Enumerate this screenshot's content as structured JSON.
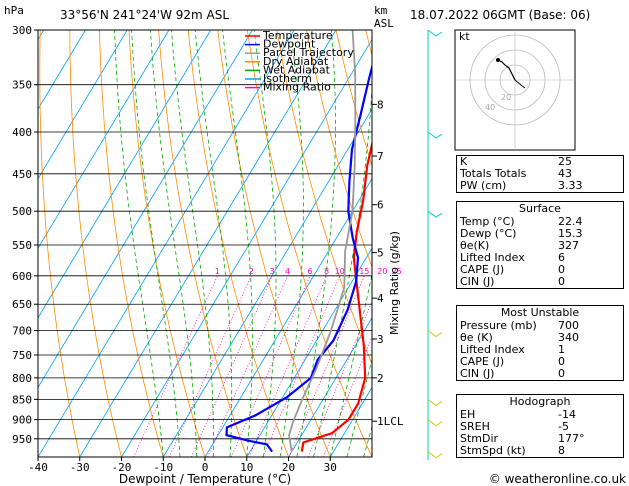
{
  "header": {
    "hpa_label": "hPa",
    "location": "33°56'N 241°24'W 92m ASL",
    "km_label": "km",
    "asl_label": "ASL",
    "datetime": "18.07.2022 06GMT (Base: 06)"
  },
  "legend": [
    {
      "label": "Temperature",
      "color": "#ff0000"
    },
    {
      "label": "Dewpoint",
      "color": "#0000ff"
    },
    {
      "label": "Parcel Trajectory",
      "color": "#999999"
    },
    {
      "label": "Dry Adiabat",
      "color": "#ff8c00"
    },
    {
      "label": "Wet Adiabat",
      "color": "#00aa00"
    },
    {
      "label": "Isotherm",
      "color": "#00a0ff"
    },
    {
      "label": "Mixing Ratio",
      "color": "#ff00c8"
    }
  ],
  "chart_data": {
    "type": "line",
    "xlabel": "Dewpoint / Temperature (°C)",
    "ylabel": "",
    "xlim": [
      -40,
      40
    ],
    "ylim": [
      300,
      1000
    ],
    "x_ticks": [
      "-40",
      "-30",
      "-20",
      "-10",
      "0",
      "10",
      "20",
      "30"
    ],
    "pressure_ticks": [
      "300",
      "350",
      "400",
      "450",
      "500",
      "550",
      "600",
      "650",
      "700",
      "750",
      "800",
      "850",
      "900",
      "950"
    ],
    "km_ticks": [
      {
        "label": "8",
        "p": 370
      },
      {
        "label": "7",
        "p": 428
      },
      {
        "label": "6",
        "p": 491
      },
      {
        "label": "5",
        "p": 562
      },
      {
        "label": "4",
        "p": 639
      },
      {
        "label": "3",
        "p": 717
      },
      {
        "label": "2",
        "p": 800
      },
      {
        "label": "1LCL",
        "p": 904
      }
    ],
    "mixing_ratio_axis_label": "Mixing Ratio (g/kg)",
    "mixing_ratio_labels": [
      "1",
      "2",
      "3",
      "4",
      "6",
      "8",
      "10",
      "15",
      "20",
      "25"
    ],
    "series": [
      {
        "name": "Temperature",
        "color": "#ff0000",
        "points": [
          [
            22.4,
            985
          ],
          [
            21.5,
            960
          ],
          [
            27,
            935
          ],
          [
            29,
            900
          ],
          [
            29,
            860
          ],
          [
            27,
            800
          ],
          [
            22,
            730
          ],
          [
            14,
            640
          ],
          [
            7,
            570
          ],
          [
            4,
            530
          ],
          [
            1,
            485
          ],
          [
            -3,
            440
          ],
          [
            -6,
            400
          ],
          [
            -10,
            365
          ],
          [
            -14,
            330
          ],
          [
            -17,
            300
          ]
        ]
      },
      {
        "name": "Dewpoint",
        "color": "#0000ff",
        "points": [
          [
            15.3,
            985
          ],
          [
            13,
            965
          ],
          [
            8,
            955
          ],
          [
            2,
            940
          ],
          [
            1,
            920
          ],
          [
            6,
            890
          ],
          [
            11,
            845
          ],
          [
            14,
            800
          ],
          [
            13,
            760
          ],
          [
            14,
            720
          ],
          [
            13,
            660
          ],
          [
            11,
            610
          ],
          [
            8,
            570
          ],
          [
            4,
            540
          ],
          [
            -1,
            500
          ],
          [
            -5,
            460
          ],
          [
            -9,
            420
          ],
          [
            -12,
            380
          ],
          [
            -15,
            345
          ],
          [
            -19,
            300
          ]
        ]
      },
      {
        "name": "Parcel Trajectory",
        "color": "#999999",
        "points": [
          [
            20,
            985
          ],
          [
            17,
            940
          ],
          [
            16,
            904
          ],
          [
            15,
            850
          ],
          [
            14,
            780
          ],
          [
            12,
            700
          ],
          [
            9,
            620
          ],
          [
            4,
            560
          ],
          [
            0,
            500
          ],
          [
            -6,
            440
          ],
          [
            -12,
            390
          ],
          [
            -19,
            340
          ],
          [
            -26,
            300
          ]
        ]
      }
    ]
  },
  "hodograph": {
    "unit_label": "kt",
    "ring_labels": [
      "20",
      "40"
    ],
    "points": [
      [
        0,
        0
      ],
      [
        -3,
        6
      ],
      [
        -6,
        12
      ],
      [
        -10,
        15
      ],
      [
        -13,
        18
      ],
      [
        -17,
        20
      ]
    ]
  },
  "indices": {
    "k": {
      "label": "K",
      "value": "25"
    },
    "totals": {
      "label": "Totals Totals",
      "value": "43"
    },
    "pw": {
      "label": "PW (cm)",
      "value": "3.33"
    }
  },
  "surface": {
    "title": "Surface",
    "rows": [
      {
        "label": "Temp (°C)",
        "value": "22.4"
      },
      {
        "label": "Dewp (°C)",
        "value": "15.3"
      },
      {
        "label": "θe(K)",
        "value": "327"
      },
      {
        "label": "Lifted Index",
        "value": "6"
      },
      {
        "label": "CAPE (J)",
        "value": "0"
      },
      {
        "label": "CIN (J)",
        "value": "0"
      }
    ]
  },
  "most_unstable": {
    "title": "Most Unstable",
    "rows": [
      {
        "label": "Pressure (mb)",
        "value": "700"
      },
      {
        "label": "θe (K)",
        "value": "340"
      },
      {
        "label": "Lifted Index",
        "value": "1"
      },
      {
        "label": "CAPE (J)",
        "value": "0"
      },
      {
        "label": "CIN (J)",
        "value": "0"
      }
    ]
  },
  "hodo_table": {
    "title": "Hodograph",
    "rows": [
      {
        "label": "EH",
        "value": "-14"
      },
      {
        "label": "SREH",
        "value": "-5"
      },
      {
        "label": "StmDir",
        "value": "177°"
      },
      {
        "label": "StmSpd (kt)",
        "value": "8"
      }
    ]
  },
  "copyright": "© weatheronline.co.uk"
}
